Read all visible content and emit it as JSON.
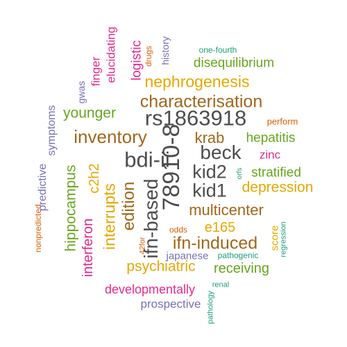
{
  "palette": {
    "gray": "#4d4d4d",
    "brown": "#a0661b",
    "orange": "#d95f02",
    "gold": "#e6a700",
    "green": "#66a61e",
    "teal": "#1b9e77",
    "purple": "#7570b3",
    "magenta": "#e7298a"
  },
  "words": [
    "78910-8",
    "rs1863918",
    "bdi-ii",
    "ifn-based",
    "kid2",
    "kid1",
    "beck",
    "characterisation",
    "nephrogenesis",
    "inventory",
    "edition",
    "multicenter",
    "ifn-induced",
    "interrupts",
    "c2h2",
    "krab",
    "depression",
    "psychiatric",
    "receiving",
    "hippocampus",
    "younger",
    "hepatitis",
    "stratified",
    "e165",
    "interferon",
    "disequilibrium",
    "developmentally",
    "prospective",
    "logistic",
    "zinc",
    "elucidating",
    "finger",
    "predictive",
    "symptoms",
    "japanese",
    "score",
    "gwas",
    "history",
    "drugs",
    "one-fourth",
    "perform",
    "odds",
    "nonpredicted",
    "42for",
    "pathogenic",
    "orfs",
    "renal",
    "regression",
    "pathology"
  ]
}
